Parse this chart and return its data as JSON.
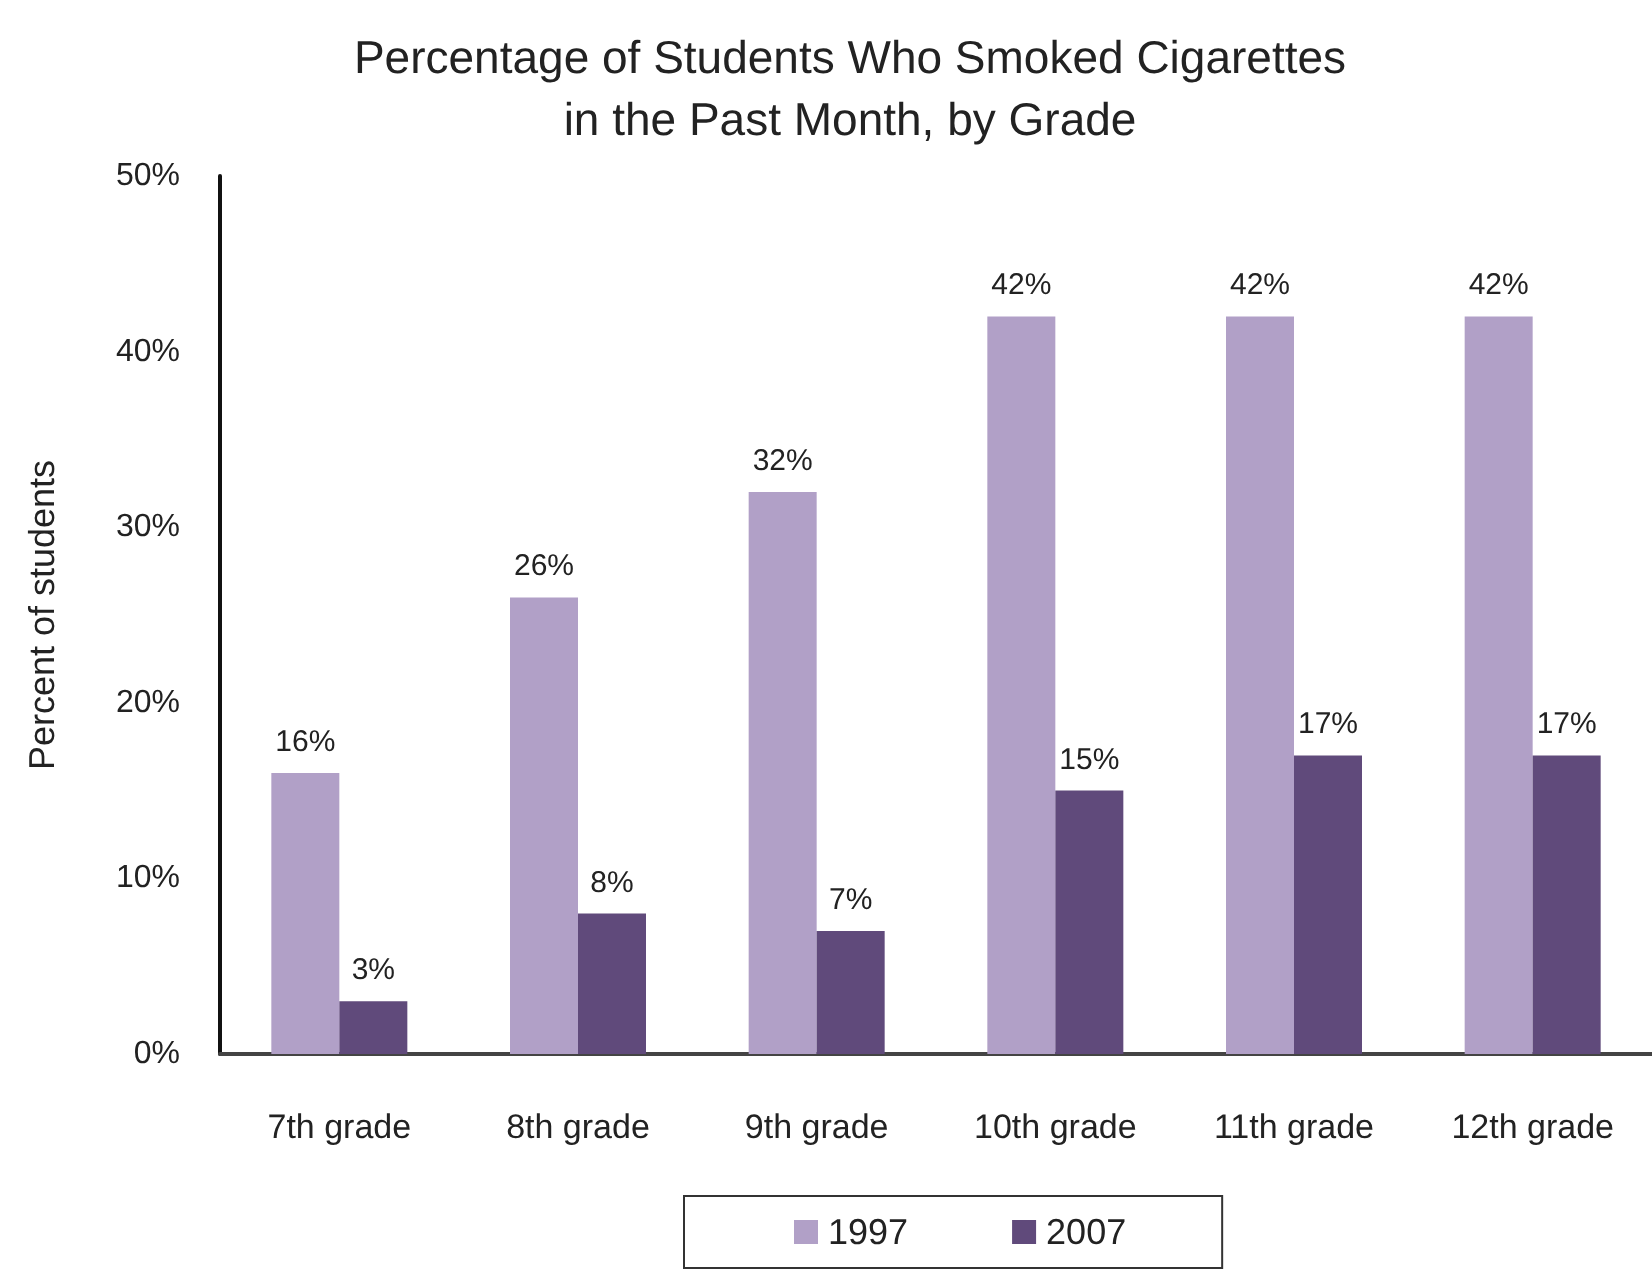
{
  "chart_data": {
    "type": "bar",
    "title": "Percentage of Students Who Smoked Cigarettes\nin the Past Month, by Grade",
    "ylabel": "Percent of students",
    "categories": [
      "7th grade",
      "8th grade",
      "9th grade",
      "10th grade",
      "11th grade",
      "12th grade"
    ],
    "series": [
      {
        "name": "1997",
        "color": "#b1a0c7",
        "values": [
          16,
          26,
          32,
          42,
          42,
          42
        ],
        "value_labels": [
          "16%",
          "26%",
          "32%",
          "42%",
          "42%",
          "42%"
        ]
      },
      {
        "name": "2007",
        "color": "#604a7b",
        "values": [
          3,
          8,
          7,
          15,
          17,
          17
        ],
        "value_labels": [
          "3%",
          "8%",
          "7%",
          "15%",
          "17%",
          "17%"
        ]
      }
    ],
    "ylim": [
      0,
      50
    ],
    "yticks": [
      {
        "value": 0,
        "label": "0%"
      },
      {
        "value": 10,
        "label": "10%"
      },
      {
        "value": 20,
        "label": "20%"
      },
      {
        "value": 30,
        "label": "30%"
      },
      {
        "value": 40,
        "label": "40%"
      },
      {
        "value": 50,
        "label": "50%"
      }
    ],
    "grid": false,
    "legend": "bottom"
  }
}
